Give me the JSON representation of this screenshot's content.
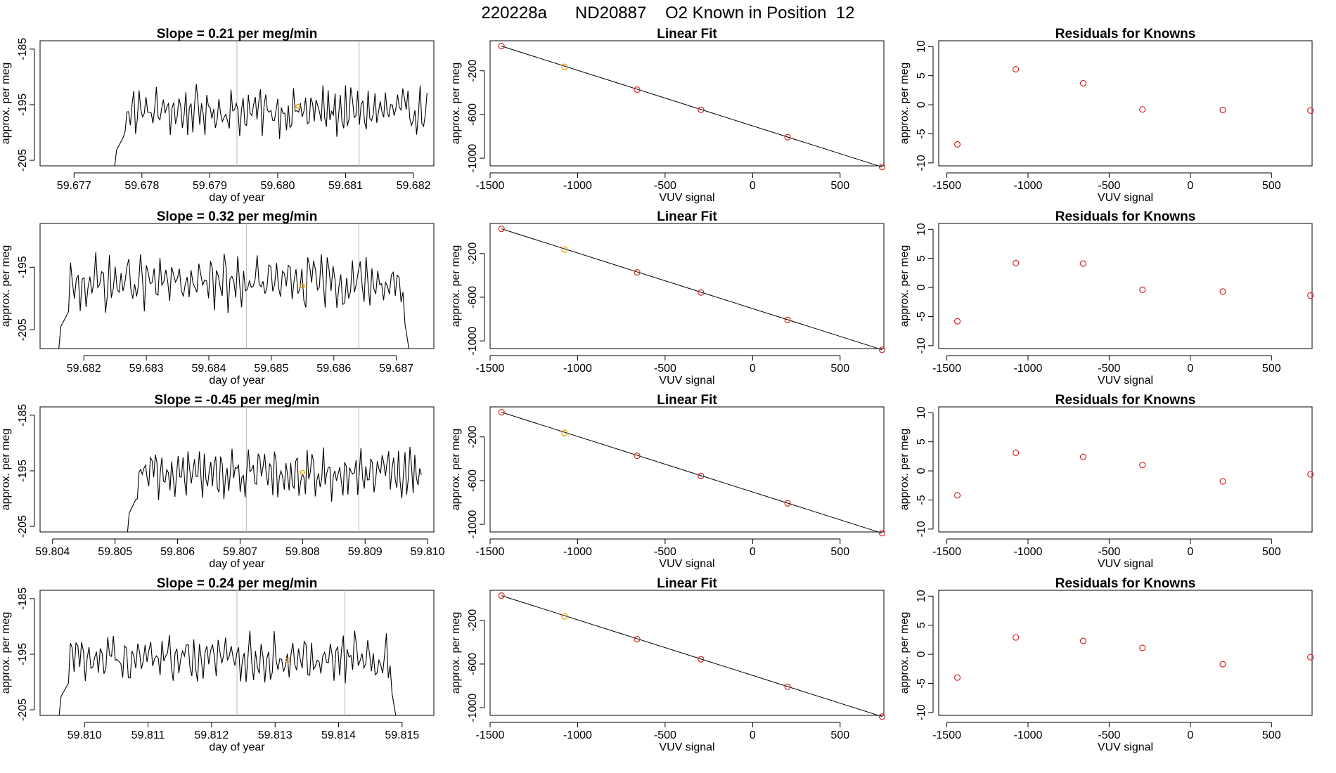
{
  "title": "220228a      ND20887    O2 Known in Position  12",
  "colors": {
    "trace": "#000000",
    "gridline": "#b8b8b8",
    "point_ts": "#e69f00",
    "point_fit": "#e69f00",
    "point_resid": "#d62728",
    "fitline": "#000000"
  },
  "chart_data": [
    {
      "type": "line",
      "row": 1,
      "title": "Slope =  0.21  per meg/min",
      "xlabel": "day of year",
      "ylabel": "approx. per meg",
      "xlim": [
        59.6765,
        59.6823
      ],
      "ylim": [
        -206,
        -183.5
      ],
      "xticks": [
        59.677,
        59.678,
        59.679,
        59.68,
        59.681,
        59.682
      ],
      "xtick_labels": [
        "59.677",
        "59.678",
        "59.679",
        "59.680",
        "59.681",
        "59.682"
      ],
      "yticks": [
        -185,
        -195,
        -205
      ],
      "ytick_labels": [
        "-185",
        "-195",
        "-205"
      ],
      "series_start": 59.6776,
      "series_end": 59.6822,
      "series_mean": -196.2,
      "vlines": [
        59.6794,
        59.6812
      ],
      "highlight_point": [
        59.6803,
        -195.3
      ]
    },
    {
      "type": "linear_fit",
      "row": 1,
      "title": "Linear Fit",
      "xlabel": "VUV signal",
      "ylabel": "approx. per meg",
      "xlim": [
        -1500,
        750
      ],
      "ylim": [
        -1070,
        75
      ],
      "xticks": [
        -1500,
        -1000,
        -500,
        0,
        500
      ],
      "xtick_labels": [
        "-1500",
        "-1000",
        "-500",
        "0",
        "500"
      ],
      "yticks": [
        -200,
        -600,
        -1000
      ],
      "ytick_labels": [
        "-200",
        "-600",
        "-1000"
      ],
      "x": [
        -1435,
        -1075,
        -660,
        -295,
        200,
        740
      ],
      "y": [
        26,
        -164,
        -373,
        -557,
        -808,
        -1081
      ],
      "highlight_index": 1
    },
    {
      "type": "scatter",
      "row": 1,
      "title": "Residuals for Knowns",
      "xlabel": "VUV signal",
      "ylabel": "approx. per meg",
      "xlim": [
        -1550,
        750
      ],
      "ylim": [
        -10.5,
        11
      ],
      "xticks": [
        -1500,
        -1000,
        -500,
        0,
        500
      ],
      "xtick_labels": [
        "-1500",
        "-1000",
        "-500",
        "0",
        "500"
      ],
      "yticks": [
        10,
        5,
        0,
        -5,
        -10
      ],
      "ytick_labels": [
        "10",
        "5",
        "0",
        "-5",
        "-10"
      ],
      "x": [
        -1435,
        -1075,
        -660,
        -295,
        200,
        740
      ],
      "y": [
        -6.8,
        6.1,
        3.7,
        -0.8,
        -0.9,
        -1.0
      ]
    },
    {
      "type": "line",
      "row": 2,
      "title": "Slope =  0.32  per meg/min",
      "xlabel": "day of year",
      "ylabel": "approx. per meg",
      "xlim": [
        59.6813,
        59.6876
      ],
      "ylim": [
        -208,
        -188
      ],
      "xticks": [
        59.682,
        59.683,
        59.684,
        59.685,
        59.686,
        59.687
      ],
      "xtick_labels": [
        "59.682",
        "59.683",
        "59.684",
        "59.685",
        "59.686",
        "59.687"
      ],
      "yticks": [
        -195,
        -205
      ],
      "ytick_labels": [
        "-195",
        "-205"
      ],
      "series_start": 59.6816,
      "series_end": 59.6872,
      "series_mean": -197.5,
      "vlines": [
        59.6846,
        59.6864
      ],
      "highlight_point": [
        59.6855,
        -198.0
      ]
    },
    {
      "type": "linear_fit",
      "row": 2,
      "title": "Linear Fit",
      "xlabel": "VUV signal",
      "ylabel": "approx. per meg",
      "xlim": [
        -1500,
        750
      ],
      "ylim": [
        -1070,
        75
      ],
      "xticks": [
        -1500,
        -1000,
        -500,
        0,
        500
      ],
      "xtick_labels": [
        "-1500",
        "-1000",
        "-500",
        "0",
        "500"
      ],
      "yticks": [
        -200,
        -600,
        -1000
      ],
      "ytick_labels": [
        "-200",
        "-600",
        "-1000"
      ],
      "x": [
        -1435,
        -1075,
        -660,
        -295,
        200,
        740
      ],
      "y": [
        26,
        -164,
        -373,
        -557,
        -808,
        -1081
      ],
      "highlight_index": 1
    },
    {
      "type": "scatter",
      "row": 2,
      "title": "Residuals for Knowns",
      "xlabel": "VUV signal",
      "ylabel": "approx. per meg",
      "xlim": [
        -1550,
        750
      ],
      "ylim": [
        -10.5,
        11
      ],
      "xticks": [
        -1500,
        -1000,
        -500,
        0,
        500
      ],
      "xtick_labels": [
        "-1500",
        "-1000",
        "-500",
        "0",
        "500"
      ],
      "yticks": [
        10,
        5,
        0,
        -5,
        -10
      ],
      "ytick_labels": [
        "10",
        "5",
        "0",
        "-5",
        "-10"
      ],
      "x": [
        -1435,
        -1075,
        -660,
        -295,
        200,
        740
      ],
      "y": [
        -5.8,
        4.2,
        4.1,
        -0.4,
        -0.7,
        -1.4
      ]
    },
    {
      "type": "line",
      "row": 3,
      "title": "Slope =  -0.45  per meg/min",
      "xlabel": "day of year",
      "ylabel": "approx. per meg",
      "xlim": [
        59.8038,
        59.8101
      ],
      "ylim": [
        -206,
        -183.5
      ],
      "xticks": [
        59.804,
        59.805,
        59.806,
        59.807,
        59.808,
        59.809,
        59.81
      ],
      "xtick_labels": [
        "59.804",
        "59.805",
        "59.806",
        "59.807",
        "59.808",
        "59.809",
        "59.810"
      ],
      "yticks": [
        -185,
        -195,
        -205
      ],
      "ytick_labels": [
        "-185",
        "-195",
        "-205"
      ],
      "series_start": 59.8052,
      "series_end": 59.8099,
      "series_mean": -195.6,
      "vlines": [
        59.8071,
        59.8089
      ],
      "highlight_point": [
        59.808,
        -195.3
      ]
    },
    {
      "type": "linear_fit",
      "row": 3,
      "title": "Linear Fit",
      "xlabel": "VUV signal",
      "ylabel": "approx. per meg",
      "xlim": [
        -1500,
        750
      ],
      "ylim": [
        -1070,
        75
      ],
      "xticks": [
        -1500,
        -1000,
        -500,
        0,
        500
      ],
      "xtick_labels": [
        "-1500",
        "-1000",
        "-500",
        "0",
        "500"
      ],
      "yticks": [
        -200,
        -600,
        -1000
      ],
      "ytick_labels": [
        "-200",
        "-600",
        "-1000"
      ],
      "x": [
        -1435,
        -1075,
        -660,
        -295,
        200,
        740
      ],
      "y": [
        26,
        -164,
        -373,
        -557,
        -808,
        -1081
      ],
      "highlight_index": 1
    },
    {
      "type": "scatter",
      "row": 3,
      "title": "Residuals for Knowns",
      "xlabel": "VUV signal",
      "ylabel": "approx. per meg",
      "xlim": [
        -1550,
        750
      ],
      "ylim": [
        -10.5,
        11
      ],
      "xticks": [
        -1500,
        -1000,
        -500,
        0,
        500
      ],
      "xtick_labels": [
        "-1500",
        "-1000",
        "-500",
        "0",
        "500"
      ],
      "yticks": [
        10,
        5,
        0,
        -5,
        -10
      ],
      "ytick_labels": [
        "10",
        "5",
        "0",
        "-5",
        "-10"
      ],
      "x": [
        -1435,
        -1075,
        -660,
        -295,
        200,
        740
      ],
      "y": [
        -4.2,
        3.1,
        2.4,
        1.0,
        -1.8,
        -0.6
      ]
    },
    {
      "type": "line",
      "row": 4,
      "title": "Slope =  0.24  per meg/min",
      "xlabel": "day of year",
      "ylabel": "approx. per meg",
      "xlim": [
        59.8093,
        59.8155
      ],
      "ylim": [
        -206,
        -183.5
      ],
      "xticks": [
        59.81,
        59.811,
        59.812,
        59.813,
        59.814,
        59.815
      ],
      "xtick_labels": [
        "59.810",
        "59.811",
        "59.812",
        "59.813",
        "59.814",
        "59.815"
      ],
      "yticks": [
        -185,
        -195,
        -205
      ],
      "ytick_labels": [
        "-185",
        "-195",
        "-205"
      ],
      "series_start": 59.8096,
      "series_end": 59.8149,
      "series_mean": -195.6,
      "vlines": [
        59.8124,
        59.8141
      ],
      "highlight_point": [
        59.8132,
        -196.1
      ]
    },
    {
      "type": "linear_fit",
      "row": 4,
      "title": "Linear Fit",
      "xlabel": "VUV signal",
      "ylabel": "approx. per meg",
      "xlim": [
        -1500,
        750
      ],
      "ylim": [
        -1070,
        75
      ],
      "xticks": [
        -1500,
        -1000,
        -500,
        0,
        500
      ],
      "xtick_labels": [
        "-1500",
        "-1000",
        "-500",
        "0",
        "500"
      ],
      "yticks": [
        -200,
        -600,
        -1000
      ],
      "ytick_labels": [
        "-200",
        "-600",
        "-1000"
      ],
      "x": [
        -1435,
        -1075,
        -660,
        -295,
        200,
        740
      ],
      "y": [
        26,
        -164,
        -373,
        -557,
        -808,
        -1081
      ],
      "highlight_index": 1
    },
    {
      "type": "scatter",
      "row": 4,
      "title": "Residuals for Knowns",
      "xlabel": "VUV signal",
      "ylabel": "approx. per meg",
      "xlim": [
        -1550,
        750
      ],
      "ylim": [
        -10.5,
        11
      ],
      "xticks": [
        -1500,
        -1000,
        -500,
        0,
        500
      ],
      "xtick_labels": [
        "-1500",
        "-1000",
        "-500",
        "0",
        "500"
      ],
      "yticks": [
        10,
        5,
        0,
        -5,
        -10
      ],
      "ytick_labels": [
        "10",
        "5",
        "0",
        "-5",
        "-10"
      ],
      "x": [
        -1435,
        -1075,
        -660,
        -295,
        200,
        740
      ],
      "y": [
        -4.0,
        2.9,
        2.3,
        1.1,
        -1.7,
        -0.5
      ]
    }
  ]
}
